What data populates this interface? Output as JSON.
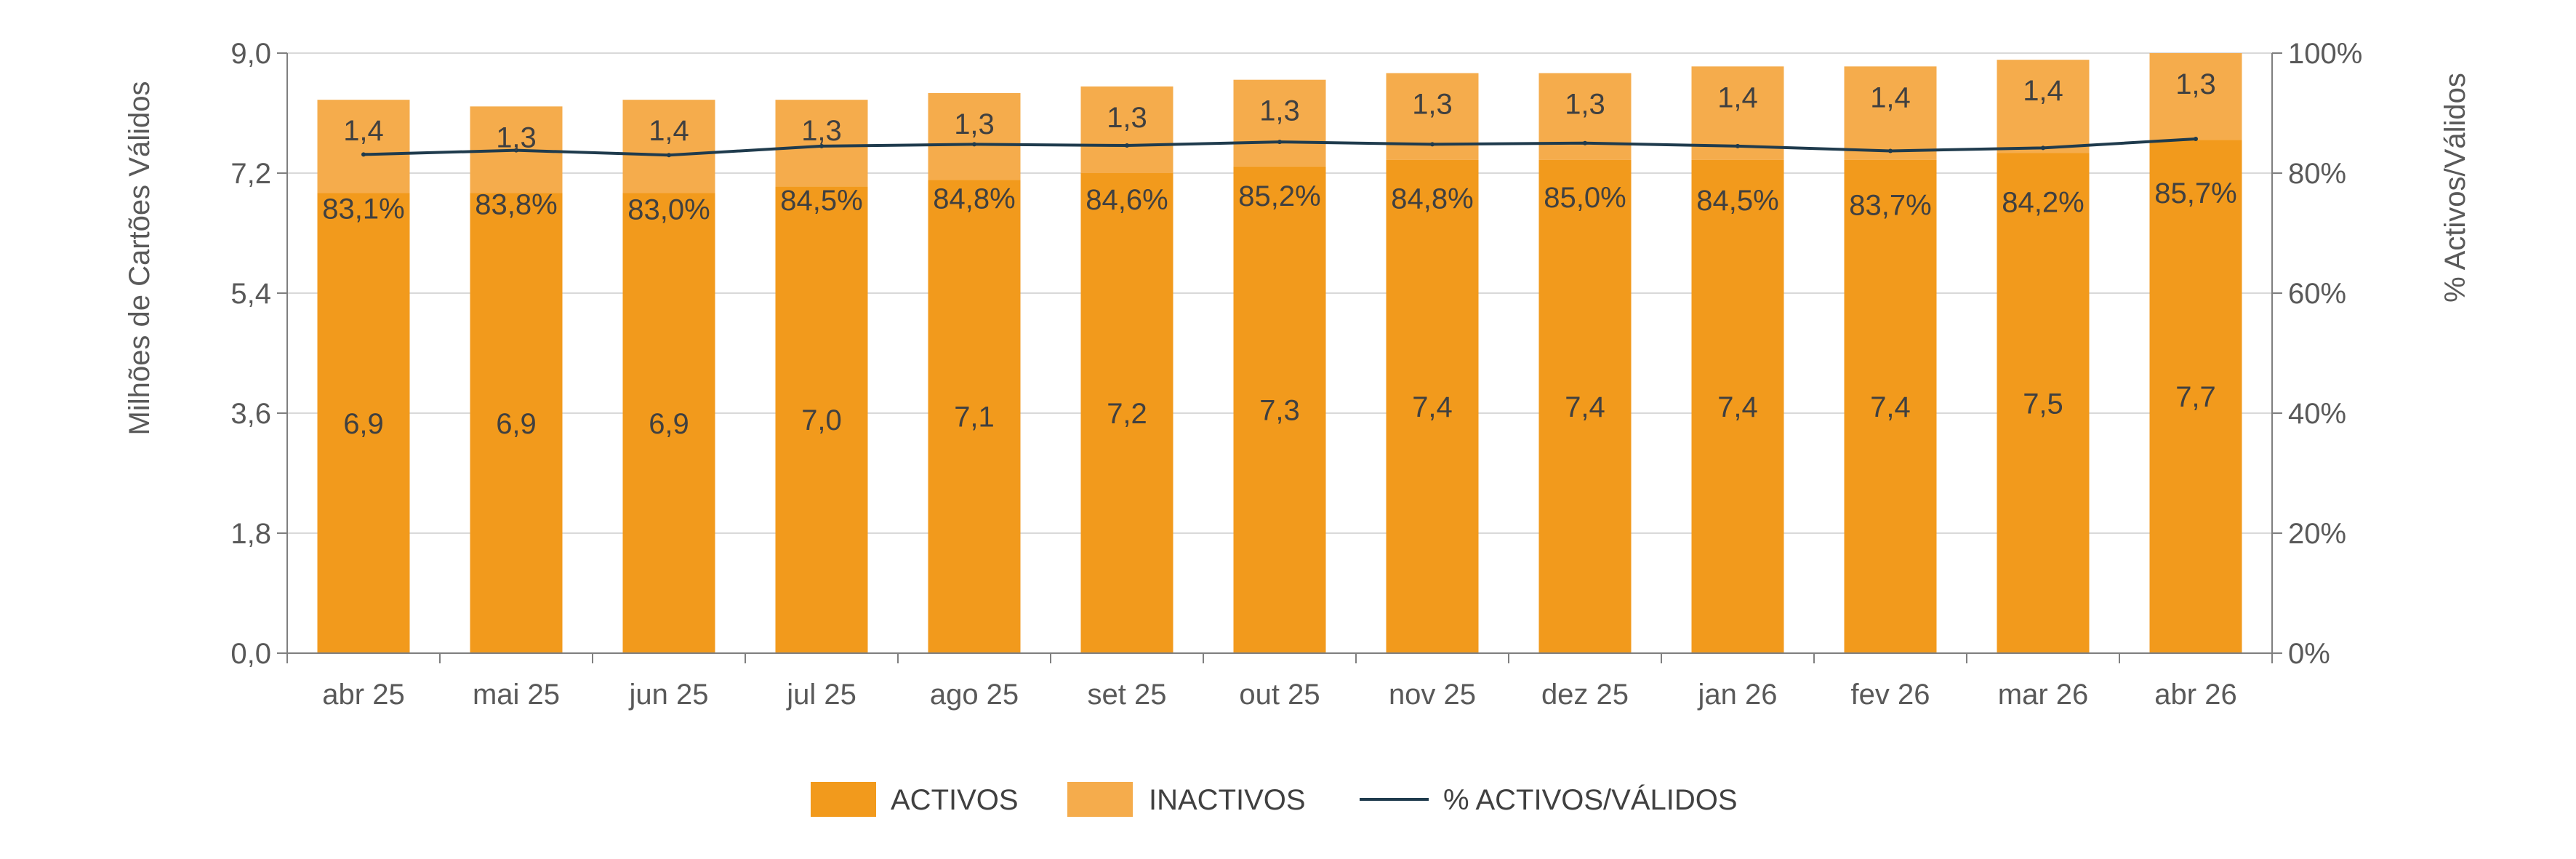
{
  "chart_data": {
    "type": "bar",
    "stacked": true,
    "categories": [
      "abr 25",
      "mai 25",
      "jun 25",
      "jul 25",
      "ago 25",
      "set 25",
      "out 25",
      "nov 25",
      "dez 25",
      "jan 26",
      "fev 26",
      "mar 26",
      "abr 26"
    ],
    "series": [
      {
        "name": "ACTIVOS",
        "kind": "bar",
        "axis": "left",
        "color": "#f29a1c",
        "values": [
          6.9,
          6.9,
          6.9,
          7.0,
          7.1,
          7.2,
          7.3,
          7.4,
          7.4,
          7.4,
          7.4,
          7.5,
          7.7
        ],
        "labels": [
          "6,9",
          "6,9",
          "6,9",
          "7,0",
          "7,1",
          "7,2",
          "7,3",
          "7,4",
          "7,4",
          "7,4",
          "7,4",
          "7,5",
          "7,7"
        ]
      },
      {
        "name": "INACTIVOS",
        "kind": "bar",
        "axis": "left",
        "color": "#f5ac4c",
        "values": [
          1.4,
          1.3,
          1.4,
          1.3,
          1.3,
          1.3,
          1.3,
          1.3,
          1.3,
          1.4,
          1.4,
          1.4,
          1.3
        ],
        "labels": [
          "1,4",
          "1,3",
          "1,4",
          "1,3",
          "1,3",
          "1,3",
          "1,3",
          "1,3",
          "1,3",
          "1,4",
          "1,4",
          "1,4",
          "1,3"
        ]
      },
      {
        "name": "% ACTIVOS/VÁLIDOS",
        "kind": "line",
        "axis": "right",
        "color": "#1f3b4d",
        "values": [
          83.1,
          83.8,
          83.0,
          84.5,
          84.8,
          84.6,
          85.2,
          84.8,
          85.0,
          84.5,
          83.7,
          84.2,
          85.7
        ],
        "labels": [
          "83,1%",
          "83,8%",
          "83,0%",
          "84,5%",
          "84,8%",
          "84,6%",
          "85,2%",
          "84,8%",
          "85,0%",
          "84,5%",
          "83,7%",
          "84,2%",
          "85,7%"
        ]
      }
    ],
    "ylabel": "Milhões de Cartões Válidos",
    "ylabel_right": "% Activos/Válidos",
    "ylim": [
      0,
      9
    ],
    "yticks": [
      "0,0",
      "1,8",
      "3,6",
      "5,4",
      "7,2",
      "9,0"
    ],
    "ylim_right": [
      0,
      100
    ],
    "yticks_right": [
      "0%",
      "20%",
      "40%",
      "60%",
      "80%",
      "100%"
    ],
    "grid": true,
    "legend_position": "bottom"
  }
}
